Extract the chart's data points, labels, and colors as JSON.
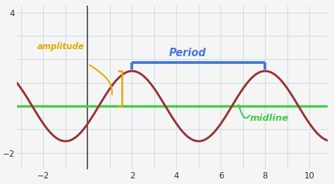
{
  "bg_color": "#f5f5f5",
  "grid_color": "#c5d5e5",
  "sine_color": "#993333",
  "midline_color": "#44cc44",
  "period_bracket_color": "#4477dd",
  "amplitude_text_color": "#ddaa00",
  "midline_text_color": "#44cc44",
  "period_text_color": "#4477dd",
  "xlim": [
    -3.2,
    10.8
  ],
  "ylim": [
    -2.7,
    4.3
  ],
  "xticks": [
    -2,
    2,
    4,
    6,
    8,
    10
  ],
  "yticks": [
    -2,
    4
  ],
  "amplitude": 1.5,
  "period": 6,
  "midline_y": 0,
  "period_bracket_x1": 2.0,
  "period_bracket_x2": 8.0,
  "period_bracket_y": 1.85,
  "period_bracket_drop": 0.28,
  "period_text": "Period",
  "amplitude_text": "amplitude",
  "midline_text": "midline",
  "sine_lw": 2.2,
  "midline_lw": 2.5,
  "bracket_lw": 2.8,
  "axis_lw": 1.2
}
